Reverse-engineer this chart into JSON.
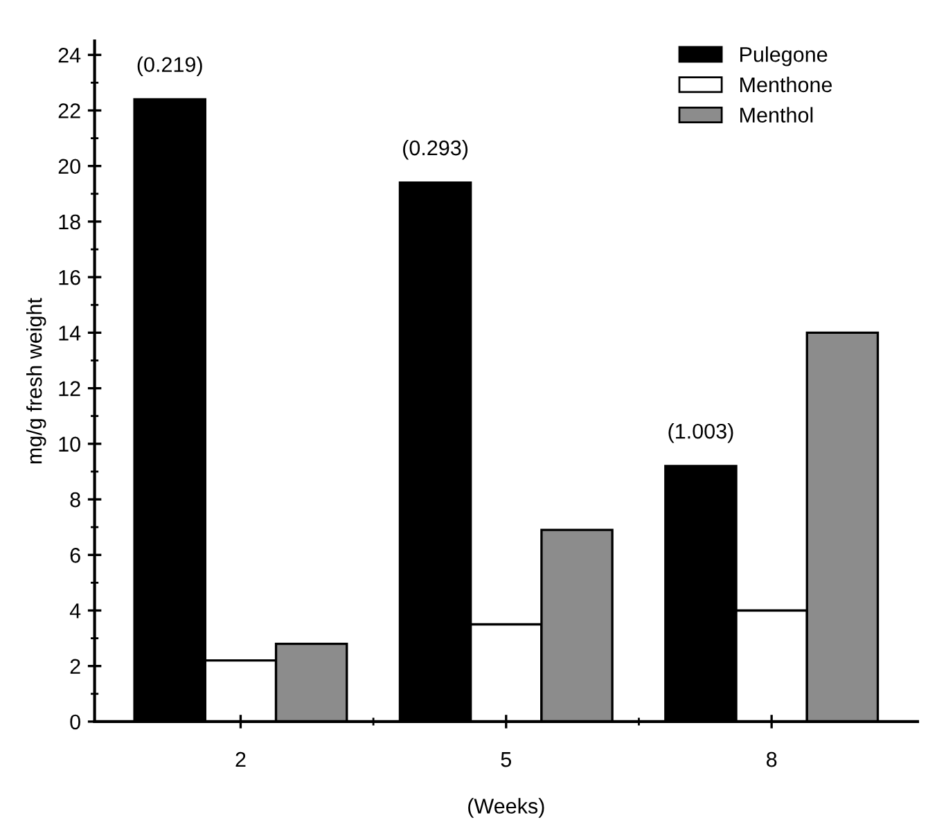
{
  "chart_data": {
    "type": "bar",
    "xlabel": "(Weeks)",
    "ylabel": "mg/g fresh weight",
    "categories": [
      "2",
      "5",
      "8"
    ],
    "series": [
      {
        "name": "Pulegone",
        "color": "#000000",
        "values": [
          22.4,
          19.4,
          9.2
        ]
      },
      {
        "name": "Menthone",
        "color": "#ffffff",
        "values": [
          2.2,
          3.5,
          4.0
        ]
      },
      {
        "name": "Menthol",
        "color": "#8c8c8c",
        "values": [
          2.8,
          6.9,
          14.0
        ]
      }
    ],
    "annotations": [
      "(0.219)",
      "(0.293)",
      "(1.003)"
    ],
    "ylim": [
      0,
      24.5
    ],
    "yticks": [
      0,
      2,
      4,
      6,
      8,
      10,
      12,
      14,
      16,
      18,
      20,
      22,
      24
    ],
    "grid": false,
    "legend": "top right"
  }
}
